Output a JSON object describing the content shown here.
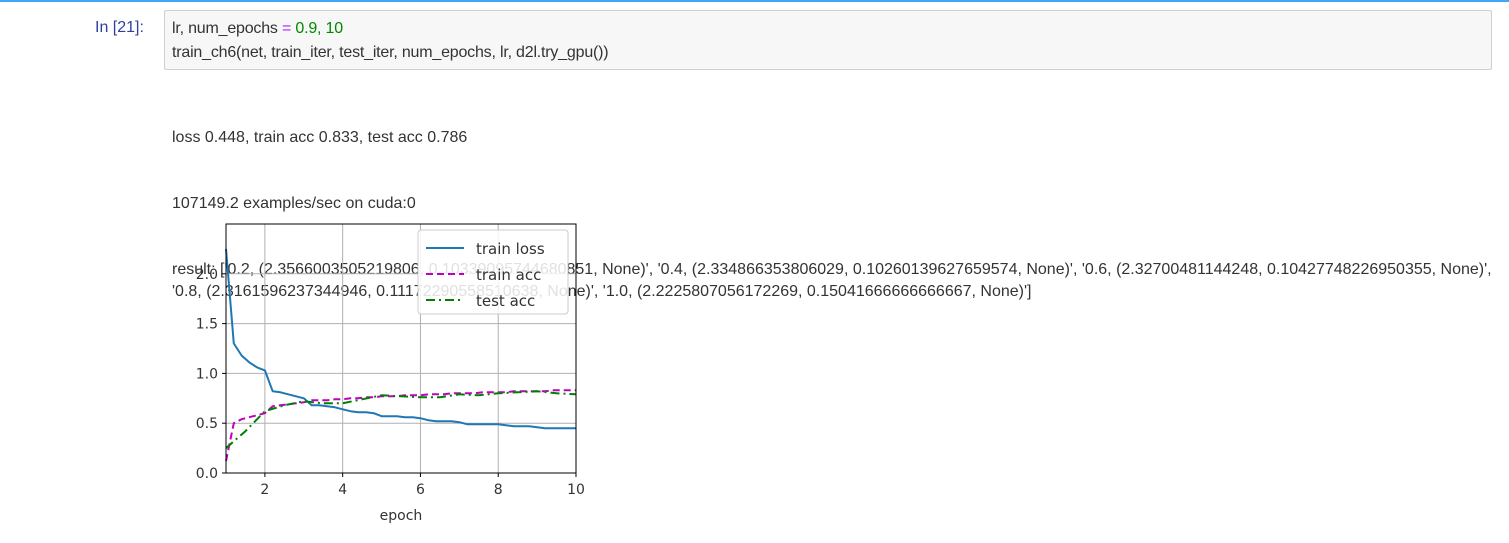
{
  "cell": {
    "prompt": "In [21]:",
    "code": {
      "line1_var": "lr, num_epochs",
      "line1_eq": "=",
      "line1_vals": "0.9, 10",
      "line2": "train_ch6(net, train_iter, test_iter, num_epochs, lr, d2l.try_gpu())"
    }
  },
  "output": {
    "line1": "loss 0.448, train acc 0.833, test acc 0.786",
    "line2": "107149.2 examples/sec on cuda:0",
    "line3": "result: ['0.2, (2.3566003505219806, 0.10339095744680851, None)', '0.4, (2.334866353806029, 0.10260139627659574, None)', '0.6, (2.32700481144248, 0.10427748226950355, None)', '0.8, (2.3161596237344946, 0.11172290558510638, None)', '1.0, (2.2225807056172269, 0.15041666666666667, None)']"
  },
  "chart_data": {
    "type": "line",
    "xlabel": "epoch",
    "ylabel": "",
    "xlim": [
      1,
      10
    ],
    "ylim": [
      0,
      2.5
    ],
    "xticks": [
      "2",
      "4",
      "6",
      "8",
      "10"
    ],
    "yticks": [
      "0.0",
      "0.5",
      "1.0",
      "1.5",
      "2.0"
    ],
    "grid": true,
    "legend_position": "top-right",
    "series": [
      {
        "name": "train loss",
        "color": "#1f77b4",
        "style": "solid",
        "x": [
          1.0,
          1.2,
          1.4,
          1.6,
          1.8,
          2.0,
          2.2,
          2.4,
          2.6,
          2.8,
          3.0,
          3.2,
          3.4,
          3.6,
          3.8,
          4.0,
          4.2,
          4.4,
          4.6,
          4.8,
          5.0,
          5.2,
          5.4,
          5.6,
          5.8,
          6.0,
          6.2,
          6.4,
          6.6,
          6.8,
          7.0,
          7.2,
          7.4,
          7.6,
          7.8,
          8.0,
          8.2,
          8.4,
          8.6,
          8.8,
          9.0,
          9.2,
          9.4,
          9.6,
          9.8,
          10.0
        ],
        "y": [
          2.25,
          1.3,
          1.18,
          1.11,
          1.06,
          1.03,
          0.82,
          0.81,
          0.79,
          0.77,
          0.75,
          0.68,
          0.68,
          0.67,
          0.66,
          0.64,
          0.62,
          0.61,
          0.61,
          0.6,
          0.57,
          0.57,
          0.57,
          0.56,
          0.56,
          0.55,
          0.53,
          0.52,
          0.52,
          0.52,
          0.51,
          0.49,
          0.49,
          0.49,
          0.49,
          0.49,
          0.48,
          0.47,
          0.47,
          0.47,
          0.46,
          0.45,
          0.45,
          0.45,
          0.45,
          0.45
        ]
      },
      {
        "name": "train acc",
        "color": "#bf00bf",
        "style": "dashed",
        "x": [
          1.0,
          1.2,
          1.4,
          1.6,
          1.8,
          2.0,
          2.2,
          2.4,
          2.6,
          2.8,
          3.0,
          3.2,
          3.4,
          3.6,
          3.8,
          4.0,
          4.2,
          4.4,
          4.6,
          4.8,
          5.0,
          5.2,
          5.4,
          5.6,
          5.8,
          6.0,
          6.2,
          6.4,
          6.6,
          6.8,
          7.0,
          7.2,
          7.4,
          7.6,
          7.8,
          8.0,
          8.2,
          8.4,
          8.6,
          8.8,
          9.0,
          9.2,
          9.4,
          9.6,
          9.8,
          10.0
        ],
        "y": [
          0.12,
          0.5,
          0.54,
          0.56,
          0.58,
          0.6,
          0.67,
          0.68,
          0.69,
          0.7,
          0.71,
          0.73,
          0.73,
          0.73,
          0.74,
          0.74,
          0.75,
          0.75,
          0.76,
          0.76,
          0.77,
          0.77,
          0.77,
          0.78,
          0.78,
          0.78,
          0.79,
          0.79,
          0.79,
          0.8,
          0.8,
          0.8,
          0.8,
          0.81,
          0.81,
          0.81,
          0.81,
          0.82,
          0.82,
          0.82,
          0.82,
          0.82,
          0.83,
          0.83,
          0.83,
          0.83
        ]
      },
      {
        "name": "test acc",
        "color": "#008000",
        "style": "dashdot",
        "x": [
          1.0,
          1.5,
          2.0,
          2.5,
          3.0,
          3.5,
          4.0,
          4.5,
          5.0,
          5.5,
          6.0,
          6.5,
          7.0,
          7.5,
          8.0,
          8.5,
          9.0,
          9.5,
          10.0
        ],
        "y": [
          0.25,
          0.42,
          0.62,
          0.68,
          0.72,
          0.7,
          0.7,
          0.74,
          0.78,
          0.77,
          0.76,
          0.76,
          0.79,
          0.78,
          0.8,
          0.81,
          0.82,
          0.8,
          0.79
        ]
      }
    ]
  }
}
